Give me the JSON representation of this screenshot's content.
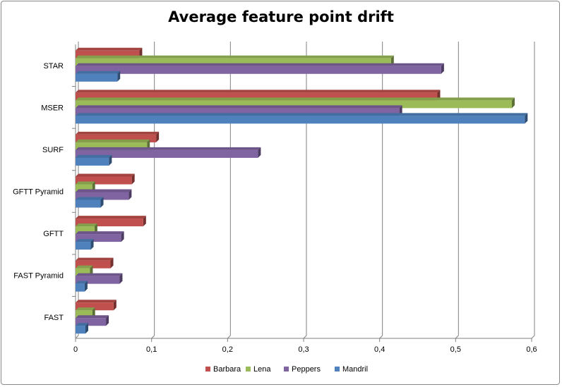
{
  "chart_data": {
    "type": "bar",
    "orientation": "horizontal",
    "title": "Average feature point drift",
    "categories": [
      "FAST",
      "FAST Pyramid",
      "GFTT",
      "GFTT Pyramid",
      "SURF",
      "MSER",
      "STAR"
    ],
    "series": [
      {
        "name": "Barbara",
        "color": "#c0504d",
        "values": [
          0.05,
          0.046,
          0.089,
          0.074,
          0.106,
          0.476,
          0.084
        ]
      },
      {
        "name": "Lena",
        "color": "#9bbb59",
        "values": [
          0.022,
          0.019,
          0.025,
          0.022,
          0.094,
          0.574,
          0.415
        ]
      },
      {
        "name": "Peppers",
        "color": "#8064a2",
        "values": [
          0.04,
          0.058,
          0.06,
          0.07,
          0.24,
          0.426,
          0.481
        ]
      },
      {
        "name": "Mandril",
        "color": "#4f81bd",
        "values": [
          0.013,
          0.012,
          0.02,
          0.033,
          0.044,
          0.591,
          0.055
        ]
      }
    ],
    "xlim": [
      0,
      0.6
    ],
    "xticks": [
      "0",
      "0,1",
      "0,2",
      "0,3",
      "0,4",
      "0,5",
      "0,6"
    ],
    "grid": "vertical major gridlines",
    "legend_position": "bottom",
    "xlabel": "",
    "ylabel": ""
  }
}
